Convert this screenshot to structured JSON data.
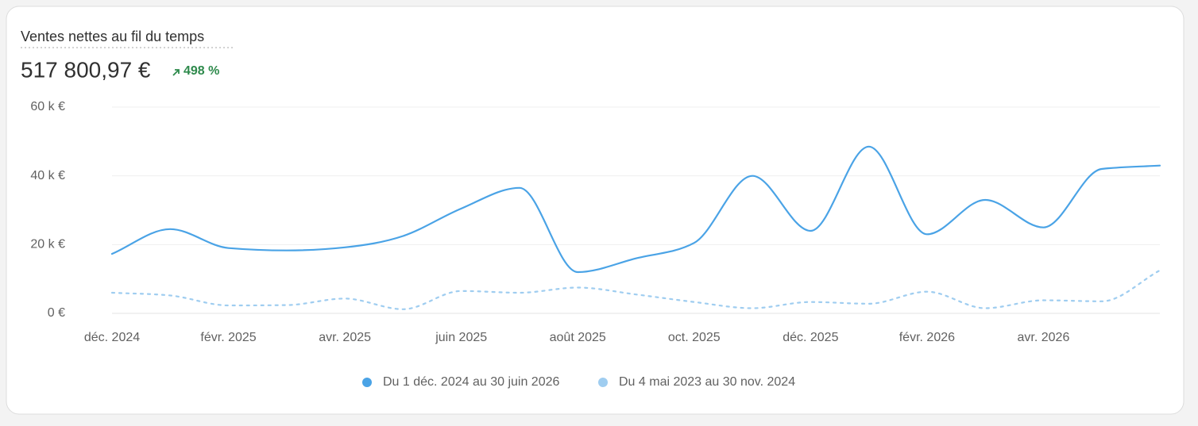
{
  "header": {
    "title": "Ventes nettes au fil du temps",
    "total": "517 800,97 €",
    "change": "498 %"
  },
  "chart_data": {
    "type": "line",
    "categories": [
      "déc. 2024",
      null,
      "févr. 2025",
      null,
      "avr. 2025",
      null,
      "juin 2025",
      null,
      "août 2025",
      null,
      "oct. 2025",
      null,
      "déc. 2025",
      null,
      "févr. 2026",
      null,
      "avr. 2026",
      null,
      null
    ],
    "series": [
      {
        "name": "Du 1 déc. 2024 au 30 juin 2026",
        "color": "#4aa3e6",
        "dashed": false,
        "values": [
          17.3,
          24.5,
          19,
          18.3,
          19.2,
          22.5,
          30.5,
          36.5,
          12,
          16,
          20.5,
          40,
          24,
          48.5,
          23,
          33,
          25,
          42,
          43
        ]
      },
      {
        "name": "Du 4 mai 2023 au 30 nov. 2024",
        "color": "#9fcdf0",
        "dashed": true,
        "values": [
          6,
          5.2,
          2.3,
          2.4,
          4.3,
          1.2,
          6.5,
          6,
          7.5,
          5.5,
          3.3,
          1.5,
          3.3,
          2.8,
          6.3,
          1.5,
          3.8,
          3.5,
          12.5
        ]
      }
    ],
    "ylim": [
      0,
      60
    ],
    "yticks": [
      {
        "value": 0,
        "label": "0 €"
      },
      {
        "value": 20,
        "label": "20 k €"
      },
      {
        "value": 40,
        "label": "40 k €"
      },
      {
        "value": 60,
        "label": "60 k €"
      }
    ],
    "grid": true,
    "legend": "bottom"
  }
}
